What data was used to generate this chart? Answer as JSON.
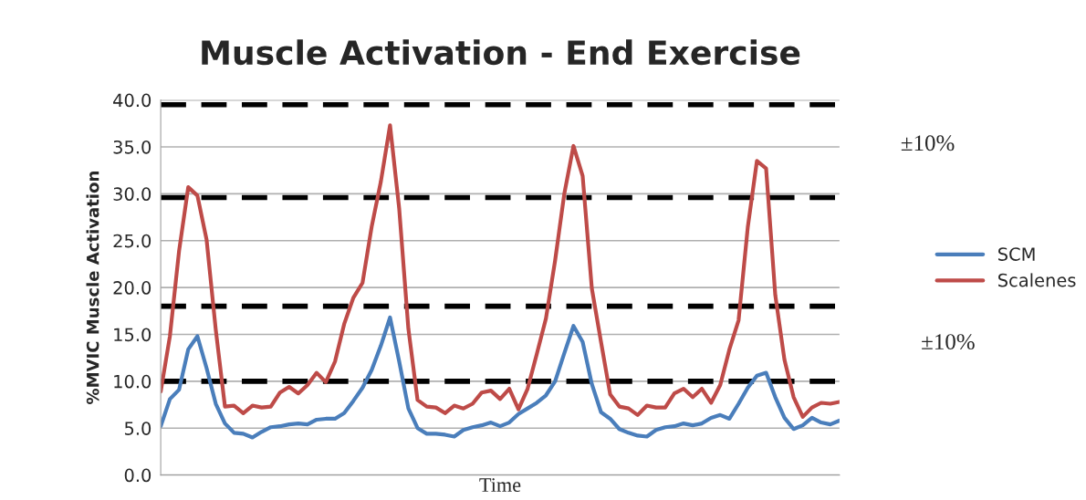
{
  "chart_data": {
    "type": "line",
    "title": "Muscle Activation - End Exercise",
    "xlabel": "Time",
    "ylabel": "%MVIC Muscle Activation",
    "categories": [
      null,
      null,
      null,
      null,
      null,
      null,
      null,
      null,
      null,
      null,
      null,
      null,
      null,
      null,
      null,
      null,
      null,
      null,
      null,
      null,
      null,
      null,
      null,
      null,
      null,
      null,
      null,
      null,
      null,
      null,
      null,
      null,
      null,
      null,
      null,
      null,
      null,
      null,
      null,
      null,
      null,
      null,
      null,
      null,
      null,
      null,
      null,
      null,
      null,
      null,
      null,
      null,
      null,
      null,
      null,
      null,
      null,
      null,
      null,
      null,
      null,
      null,
      null,
      null,
      null,
      null,
      null,
      null,
      null,
      null,
      null,
      null,
      null,
      null,
      null
    ],
    "ylim": [
      0,
      40
    ],
    "yticks": [
      {
        "value": 0,
        "label": "0.0"
      },
      {
        "value": 5,
        "label": "5.0"
      },
      {
        "value": 10,
        "label": "10.0"
      },
      {
        "value": 15,
        "label": "15.0"
      },
      {
        "value": 20,
        "label": "20.0"
      },
      {
        "value": 25,
        "label": "25.0"
      },
      {
        "value": 30,
        "label": "30.0"
      },
      {
        "value": 35,
        "label": "35.0"
      },
      {
        "value": 40,
        "label": "40.0"
      }
    ],
    "grid": "y",
    "legend": "right",
    "marker": "none",
    "line_style": "solid",
    "ref_lines": [
      {
        "axis": "y",
        "value": 39.5,
        "color": "#000000",
        "line_style": "dashed"
      },
      {
        "axis": "y",
        "value": 29.6,
        "color": "#000000",
        "line_style": "dashed"
      },
      {
        "axis": "y",
        "value": 18,
        "color": "#000000",
        "line_style": "dashed"
      },
      {
        "axis": "y",
        "value": 10,
        "color": "#000000",
        "line_style": "dashed"
      }
    ],
    "annotations": [
      "±10%",
      "±10%"
    ],
    "series": [
      {
        "name": "SCM",
        "color": "#4a7ebb",
        "values": [
          5.2,
          8.1,
          9.1,
          13.4,
          14.8,
          11.4,
          7.6,
          5.5,
          4.5,
          4.4,
          4.0,
          4.6,
          5.1,
          5.2,
          5.4,
          5.5,
          5.4,
          5.9,
          6.0,
          6.0,
          6.6,
          7.9,
          9.3,
          11.2,
          13.8,
          16.8,
          12.1,
          7.1,
          5.0,
          4.4,
          4.4,
          4.3,
          4.1,
          4.8,
          5.1,
          5.3,
          5.6,
          5.2,
          5.6,
          6.5,
          7.1,
          7.7,
          8.5,
          10.0,
          13.0,
          15.9,
          14.2,
          9.7,
          6.7,
          6.0,
          4.9,
          4.5,
          4.2,
          4.1,
          4.8,
          5.1,
          5.2,
          5.5,
          5.3,
          5.5,
          6.1,
          6.4,
          6.0,
          7.6,
          9.3,
          10.6,
          10.9,
          8.3,
          6.1,
          4.9,
          5.3,
          6.1,
          5.6,
          5.4,
          5.8
        ]
      },
      {
        "name": "Scalenes",
        "color": "#be4b48",
        "values": [
          8.9,
          14.8,
          23.9,
          30.7,
          29.8,
          25.1,
          15.5,
          7.3,
          7.4,
          6.6,
          7.4,
          7.2,
          7.3,
          8.8,
          9.4,
          8.7,
          9.6,
          10.9,
          9.9,
          12.1,
          16.1,
          18.9,
          20.5,
          26.5,
          31.3,
          37.3,
          28.4,
          15.6,
          8.0,
          7.3,
          7.2,
          6.6,
          7.4,
          7.1,
          7.6,
          8.8,
          9.0,
          8.1,
          9.2,
          7.0,
          9.2,
          12.9,
          16.7,
          22.9,
          30.0,
          35.1,
          31.9,
          19.9,
          14.2,
          8.6,
          7.3,
          7.1,
          6.4,
          7.4,
          7.2,
          7.2,
          8.7,
          9.2,
          8.3,
          9.2,
          7.7,
          9.6,
          13.4,
          16.5,
          26.4,
          33.5,
          32.7,
          19.2,
          12.3,
          8.3,
          6.2,
          7.2,
          7.7,
          7.6,
          7.8
        ]
      }
    ]
  }
}
